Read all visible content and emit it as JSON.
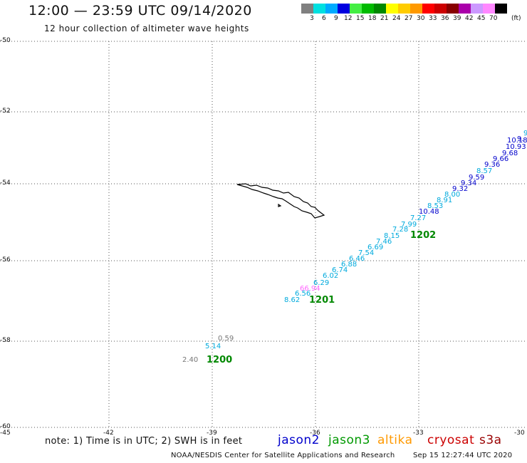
{
  "header": {
    "title": "12:00 — 23:59 UTC 09/14/2020",
    "subtitle": "12 hour collection of altimeter wave heights"
  },
  "color_scale": {
    "labels": [
      "3",
      "6",
      "9",
      "12",
      "15",
      "18",
      "21",
      "24",
      "27",
      "30",
      "33",
      "36",
      "39",
      "42",
      "45",
      "70"
    ],
    "colors": [
      "#808080",
      "#00e0e0",
      "#00aaff",
      "#0000e0",
      "#44ee44",
      "#00bb00",
      "#008800",
      "#ffff00",
      "#ffcc00",
      "#ff9900",
      "#ff0000",
      "#cc0000",
      "#880000",
      "#aa00aa",
      "#cc99ff",
      "#ff88ff",
      "#000000"
    ],
    "unit": "(ft)"
  },
  "axes": {
    "lat_labels": [
      "-50",
      "-52",
      "-54",
      "-56",
      "-58",
      "-60"
    ],
    "lon_labels": [
      "-45",
      "-42",
      "-39",
      "-36",
      "-33",
      "-30"
    ]
  },
  "passes": [
    {
      "label": "1200",
      "color": "#008800"
    },
    {
      "label": "1201",
      "color": "#008800"
    },
    {
      "label": "1202",
      "color": "#008800"
    }
  ],
  "points": [
    {
      "value": "0.59",
      "color": "#777777"
    },
    {
      "value": "5.14",
      "color": "#00aadd"
    },
    {
      "value": "2.40",
      "color": "#777777"
    },
    {
      "value": "8.62",
      "color": "#00aadd"
    },
    {
      "value": "6.56",
      "color": "#00aadd"
    },
    {
      "value": "66.94",
      "color": "#ff66ff"
    },
    {
      "value": "6.29",
      "color": "#00aadd"
    },
    {
      "value": "6.02",
      "color": "#00aadd"
    },
    {
      "value": "6.74",
      "color": "#00aadd"
    },
    {
      "value": "6.88",
      "color": "#00aadd"
    },
    {
      "value": "6.46",
      "color": "#00aadd"
    },
    {
      "value": "7.54",
      "color": "#00aadd"
    },
    {
      "value": "6.69",
      "color": "#00aadd"
    },
    {
      "value": "7.46",
      "color": "#00aadd"
    },
    {
      "value": "8.15",
      "color": "#00aadd"
    },
    {
      "value": "7.28",
      "color": "#00aadd"
    },
    {
      "value": "7.99",
      "color": "#00aadd"
    },
    {
      "value": "7.27",
      "color": "#00aadd"
    },
    {
      "value": "10.48",
      "color": "#0000cc"
    },
    {
      "value": "8.53",
      "color": "#00aadd"
    },
    {
      "value": "8.91",
      "color": "#00aadd"
    },
    {
      "value": "8.00",
      "color": "#00aadd"
    },
    {
      "value": "9.32",
      "color": "#0000cc"
    },
    {
      "value": "9.34",
      "color": "#0000cc"
    },
    {
      "value": "9.59",
      "color": "#0000cc"
    },
    {
      "value": "8.57",
      "color": "#00aadd"
    },
    {
      "value": "9.36",
      "color": "#0000cc"
    },
    {
      "value": "9.66",
      "color": "#0000cc"
    },
    {
      "value": "9.68",
      "color": "#0000cc"
    },
    {
      "value": "10.93",
      "color": "#0000cc"
    },
    {
      "value": "10.18",
      "color": "#0000cc"
    },
    {
      "value": "9.",
      "color": "#0000cc"
    },
    {
      "value": "9",
      "color": "#00aadd"
    }
  ],
  "footer": {
    "note": "note: 1) Time is in UTC; 2) SWH is in feet",
    "satellites": [
      {
        "name": "jason2",
        "color": "#0000cc"
      },
      {
        "name": "jason3",
        "color": "#009900"
      },
      {
        "name": "altika",
        "color": "#ff9900"
      },
      {
        "name": "cryosat",
        "color": "#cc0000"
      },
      {
        "name": "s3a",
        "color": "#990000"
      }
    ],
    "credit": "NOAA/NESDIS Center for Satellite Applications and Research",
    "timestamp": "Sep 15 12:27:44 UTC 2020"
  }
}
